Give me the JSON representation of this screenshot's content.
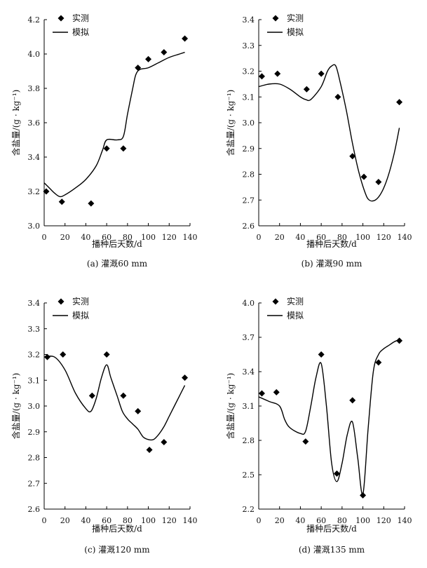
{
  "legend": {
    "observed": "实测",
    "simulated": "模拟"
  },
  "chart_data": [
    {
      "type": "scatter+line",
      "caption": "(a) 灌溉60 mm",
      "xlabel": "播种后天数/d",
      "ylabel": "含盐量/(g · kg⁻¹)",
      "xlim": [
        0,
        140
      ],
      "ylim": [
        3.0,
        4.2
      ],
      "xticks": [
        0,
        20,
        40,
        60,
        80,
        100,
        120,
        140
      ],
      "yticks": [
        3.0,
        3.2,
        3.4,
        3.6,
        3.8,
        4.0,
        4.2
      ],
      "ytick_labels": [
        "3.0",
        "3.2",
        "3.4",
        "3.6",
        "3.8",
        "4.0",
        "4.2"
      ],
      "series": [
        {
          "name": "实测",
          "type": "scatter",
          "x": [
            2,
            17,
            45,
            60,
            76,
            90,
            100,
            115,
            135
          ],
          "y": [
            3.2,
            3.14,
            3.13,
            3.45,
            3.45,
            3.92,
            3.97,
            4.01,
            4.09
          ]
        },
        {
          "name": "模拟",
          "type": "line",
          "x": [
            0,
            5,
            10,
            15,
            20,
            30,
            40,
            50,
            56,
            60,
            70,
            76,
            80,
            85,
            88,
            92,
            100,
            110,
            120,
            130,
            135
          ],
          "y": [
            3.25,
            3.22,
            3.19,
            3.17,
            3.18,
            3.22,
            3.27,
            3.35,
            3.44,
            3.5,
            3.5,
            3.52,
            3.65,
            3.8,
            3.88,
            3.91,
            3.92,
            3.95,
            3.98,
            4.0,
            4.01
          ]
        }
      ]
    },
    {
      "type": "scatter+line",
      "caption": "(b) 灌溉90 mm",
      "xlabel": "播种后天数/d",
      "ylabel": "含盐量/(g · kg⁻¹)",
      "xlim": [
        0,
        140
      ],
      "ylim": [
        2.6,
        3.4
      ],
      "xticks": [
        0,
        20,
        40,
        60,
        80,
        100,
        120,
        140
      ],
      "yticks": [
        2.6,
        2.7,
        2.8,
        2.9,
        3.0,
        3.1,
        3.2,
        3.3,
        3.4
      ],
      "ytick_labels": [
        "2.6",
        "2.7",
        "2.8",
        "2.9",
        "3.0",
        "3.1",
        "3.2",
        "3.3",
        "3.4"
      ],
      "series": [
        {
          "name": "实测",
          "type": "scatter",
          "x": [
            3,
            18,
            46,
            60,
            76,
            90,
            101,
            115,
            135
          ],
          "y": [
            3.18,
            3.19,
            3.13,
            3.19,
            3.1,
            2.87,
            2.79,
            2.77,
            3.08
          ]
        },
        {
          "name": "模拟",
          "type": "line",
          "x": [
            0,
            10,
            20,
            30,
            40,
            45,
            50,
            60,
            66,
            70,
            74,
            78,
            84,
            90,
            96,
            102,
            106,
            112,
            118,
            124,
            130,
            135
          ],
          "y": [
            3.14,
            3.15,
            3.15,
            3.13,
            3.1,
            3.09,
            3.09,
            3.14,
            3.2,
            3.22,
            3.22,
            3.16,
            3.05,
            2.92,
            2.81,
            2.73,
            2.7,
            2.7,
            2.73,
            2.79,
            2.88,
            2.98
          ]
        }
      ]
    },
    {
      "type": "scatter+line",
      "caption": "(c) 灌溉120 mm",
      "xlabel": "播种后天数/d",
      "ylabel": "含盐量/(g · kg⁻¹)",
      "xlim": [
        0,
        140
      ],
      "ylim": [
        2.6,
        3.4
      ],
      "xticks": [
        0,
        20,
        40,
        60,
        80,
        100,
        120,
        140
      ],
      "yticks": [
        2.6,
        2.7,
        2.8,
        2.9,
        3.0,
        3.1,
        3.2,
        3.3,
        3.4
      ],
      "ytick_labels": [
        "2.6",
        "2.7",
        "2.8",
        "2.9",
        "3.0",
        "3.1",
        "3.2",
        "3.3",
        "3.4"
      ],
      "series": [
        {
          "name": "实测",
          "type": "scatter",
          "x": [
            3,
            18,
            46,
            60,
            76,
            90,
            101,
            115,
            135
          ],
          "y": [
            3.19,
            3.2,
            3.04,
            3.2,
            3.04,
            2.98,
            2.83,
            2.86,
            3.11
          ]
        },
        {
          "name": "模拟",
          "type": "line",
          "x": [
            0,
            10,
            20,
            30,
            40,
            45,
            50,
            55,
            60,
            64,
            70,
            75,
            80,
            85,
            90,
            95,
            100,
            105,
            110,
            115,
            120,
            125,
            130,
            135
          ],
          "y": [
            3.19,
            3.19,
            3.14,
            3.05,
            2.99,
            2.98,
            3.03,
            3.11,
            3.16,
            3.11,
            3.04,
            2.98,
            2.95,
            2.93,
            2.91,
            2.88,
            2.87,
            2.87,
            2.89,
            2.92,
            2.96,
            3.0,
            3.04,
            3.08
          ]
        }
      ]
    },
    {
      "type": "scatter+line",
      "caption": "(d) 灌溉135 mm",
      "xlabel": "播种后天数/d",
      "ylabel": "含盐量/(g · kg⁻¹)",
      "xlim": [
        0,
        140
      ],
      "ylim": [
        2.2,
        4.0
      ],
      "xticks": [
        0,
        20,
        40,
        60,
        80,
        100,
        120,
        140
      ],
      "yticks": [
        2.2,
        2.5,
        2.8,
        3.1,
        3.4,
        3.7,
        4.0
      ],
      "ytick_labels": [
        "2.2",
        "2.5",
        "2.8",
        "3.1",
        "3.4",
        "3.7",
        "4.0"
      ],
      "series": [
        {
          "name": "实测",
          "type": "scatter",
          "x": [
            3,
            17,
            45,
            60,
            75,
            90,
            100,
            115,
            135
          ],
          "y": [
            3.21,
            3.22,
            2.79,
            3.55,
            2.51,
            3.15,
            2.32,
            3.48,
            3.67
          ]
        },
        {
          "name": "模拟",
          "type": "line",
          "x": [
            0,
            10,
            20,
            25,
            30,
            40,
            45,
            50,
            55,
            60,
            65,
            70,
            75,
            80,
            85,
            90,
            95,
            100,
            105,
            110,
            115,
            120,
            125,
            130,
            135
          ],
          "y": [
            3.18,
            3.14,
            3.1,
            2.98,
            2.91,
            2.86,
            2.88,
            3.1,
            3.35,
            3.47,
            3.1,
            2.6,
            2.44,
            2.6,
            2.85,
            2.96,
            2.65,
            2.33,
            2.9,
            3.4,
            3.55,
            3.6,
            3.63,
            3.66,
            3.68
          ]
        }
      ]
    }
  ]
}
